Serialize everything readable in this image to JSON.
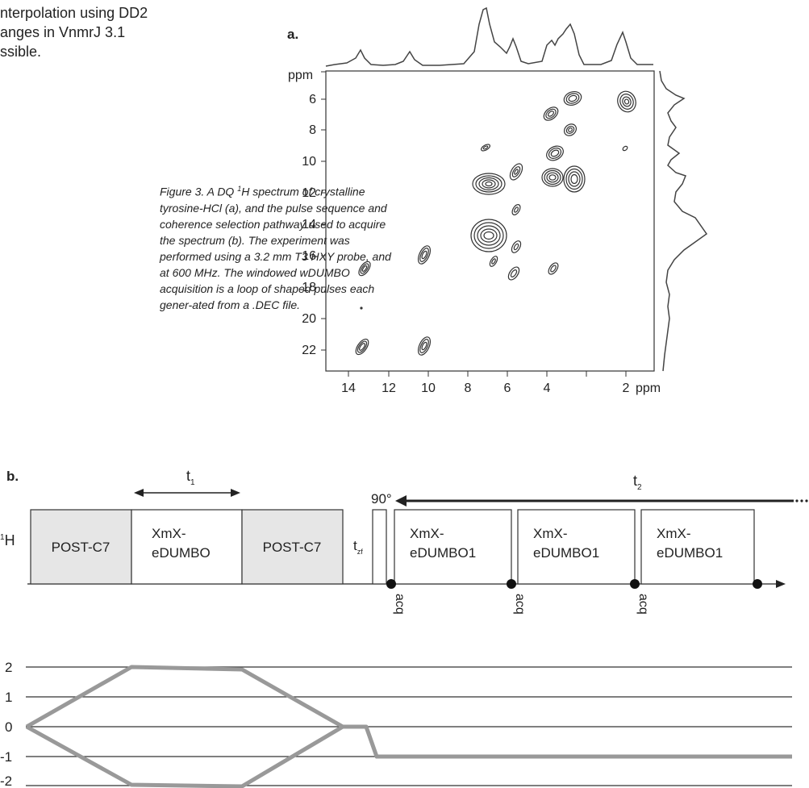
{
  "intro_lines": [
    "nterpolation using DD2",
    "anges in VnmrJ 3.1",
    "ssible."
  ],
  "caption": {
    "parts": [
      "Figure 3. A DQ ",
      "1",
      "H spectrum of crystalline tyrosine-HCl (a), and the pulse sequence and coherence selection pathway used to acquire the spectrum (b). The experiment was performed using a 3.2 mm T3 HXY probe, and at 600 MHz. The windowed wDUMBO acquisition is a loop of shaped pulses each gener-ated from a .DEC file."
    ]
  },
  "panel_a": {
    "label": "a.",
    "y_unit": "ppm",
    "x_unit": "ppm",
    "x_ticks": [
      "14",
      "12",
      "10",
      "8",
      "6",
      "4",
      "2"
    ],
    "y_ticks": [
      "6",
      "8",
      "10",
      "12",
      "14",
      "16",
      "18",
      "20",
      "22"
    ]
  },
  "panel_b": {
    "label": "b.",
    "channel": "1H",
    "t1": {
      "base": "t",
      "sub": "1"
    },
    "t2": {
      "base": "t",
      "sub": "2"
    },
    "tzf": {
      "base": "t",
      "sub": "zf"
    },
    "pulse_90": "90°",
    "blocks": [
      {
        "line1": "POST-C7",
        "line2": "",
        "shaded": true
      },
      {
        "line1": "XmX-",
        "line2": "eDUMBO",
        "shaded": false
      },
      {
        "line1": "POST-C7",
        "line2": "",
        "shaded": true
      },
      {
        "line1": "XmX-",
        "line2": "eDUMBO1",
        "shaded": false
      },
      {
        "line1": "XmX-",
        "line2": "eDUMBO1",
        "shaded": false
      },
      {
        "line1": "XmX-",
        "line2": "eDUMBO1",
        "shaded": false
      }
    ],
    "acq_label": "acq",
    "coherence_levels": [
      "2",
      "1",
      "0",
      "-1",
      "-2"
    ]
  },
  "colors": {
    "ink": "#222222",
    "shaded_block": "#e6e6e6",
    "pathway": "#999999"
  }
}
